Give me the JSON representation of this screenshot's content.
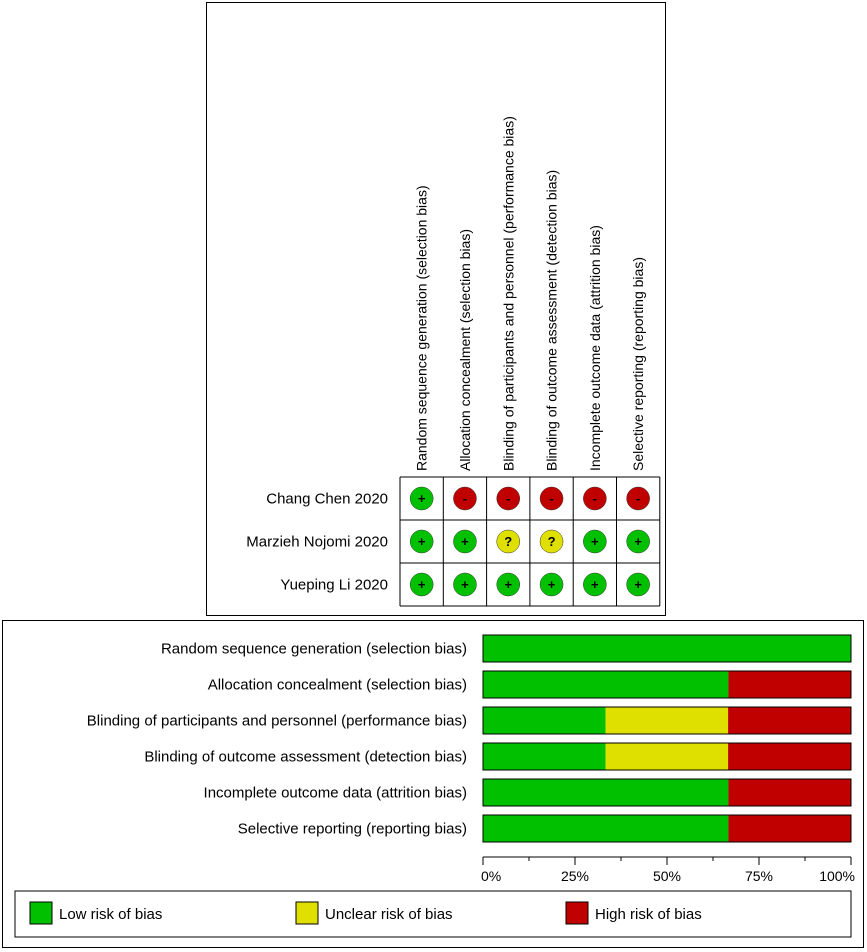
{
  "colors": {
    "low": "#00c000",
    "unclear": "#e0e000",
    "high": "#c00000"
  },
  "chart_data": [
    {
      "type": "table",
      "domains": [
        "Random sequence generation (selection bias)",
        "Allocation concealment (selection bias)",
        "Blinding of participants and personnel (performance bias)",
        "Blinding of outcome assessment (detection bias)",
        "Incomplete outcome data (attrition bias)",
        "Selective reporting (reporting bias)"
      ],
      "studies": [
        {
          "name": "Chang Chen 2020",
          "judgements": [
            "low",
            "high",
            "high",
            "high",
            "high",
            "high"
          ]
        },
        {
          "name": "Marzieh Nojomi 2020",
          "judgements": [
            "low",
            "low",
            "unclear",
            "unclear",
            "low",
            "low"
          ]
        },
        {
          "name": "Yueping Li 2020",
          "judgements": [
            "low",
            "low",
            "low",
            "low",
            "low",
            "low"
          ]
        }
      ],
      "symbols": {
        "low": "+",
        "unclear": "?",
        "high": "-"
      }
    },
    {
      "type": "bar",
      "stacked": true,
      "orientation": "horizontal",
      "categories": [
        "Random sequence generation (selection bias)",
        "Allocation concealment (selection bias)",
        "Blinding of participants and personnel (performance bias)",
        "Blinding of outcome assessment (detection bias)",
        "Incomplete outcome data (attrition bias)",
        "Selective reporting (reporting bias)"
      ],
      "series": [
        {
          "name": "Low risk of bias",
          "key": "low",
          "values": [
            100,
            66.7,
            33.3,
            33.3,
            66.7,
            66.7
          ]
        },
        {
          "name": "Unclear risk of bias",
          "key": "unclear",
          "values": [
            0,
            0,
            33.3,
            33.3,
            0,
            0
          ]
        },
        {
          "name": "High risk of bias",
          "key": "high",
          "values": [
            0,
            33.3,
            33.3,
            33.3,
            33.3,
            33.3
          ]
        }
      ],
      "xlim": [
        0,
        100
      ],
      "x_ticks": [
        "0%",
        "25%",
        "50%",
        "75%",
        "100%"
      ],
      "legend_position": "bottom"
    }
  ]
}
